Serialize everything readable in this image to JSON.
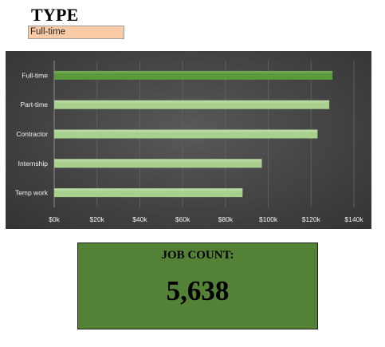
{
  "slicer": {
    "title": "TYPE",
    "selected_value": "Full-time"
  },
  "chart_data": {
    "type": "bar",
    "orientation": "horizontal",
    "categories": [
      "Full-time",
      "Part-time",
      "Contractor",
      "Internship",
      "Temp work"
    ],
    "values": [
      130000,
      128500,
      123000,
      97000,
      88000
    ],
    "highlighted_category": "Full-time",
    "x_ticks": [
      "$0k",
      "$20k",
      "$40k",
      "$60k",
      "$80k",
      "$100k",
      "$120k",
      "$140k"
    ],
    "xlim": [
      0,
      140000
    ],
    "grid": true,
    "legend": "none",
    "colors": {
      "highlight_bar": "#5a9a3c",
      "bar": "#a9d18e",
      "background": "#474747",
      "gridline": "#5e5e5e",
      "text": "#f2f2f2"
    }
  },
  "kpi": {
    "label": "JOB COUNT:",
    "value": "5,638",
    "background": "#538135"
  }
}
